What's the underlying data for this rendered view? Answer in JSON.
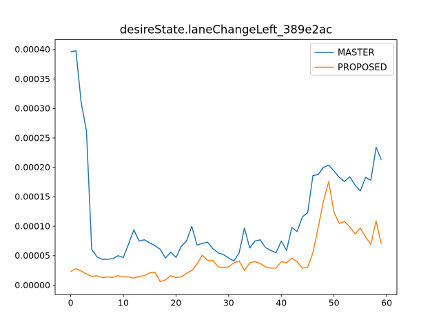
{
  "chart_data": {
    "type": "line",
    "title": "desireState.laneChangeLeft_389e2ac",
    "grid": false,
    "legend_position": "upper right",
    "xlim": [
      -2.95,
      61.95
    ],
    "ylim": [
      -1.6e-05,
      0.0004168
    ],
    "x_ticks": [
      0,
      10,
      20,
      30,
      40,
      50,
      60
    ],
    "x_tick_labels": [
      "0",
      "10",
      "20",
      "30",
      "40",
      "50",
      "60"
    ],
    "y_ticks": [
      0.0,
      5e-05,
      0.0001,
      0.00015,
      0.0002,
      0.00025,
      0.0003,
      0.00035,
      0.0004
    ],
    "y_tick_labels": [
      "0.00000",
      "0.00005",
      "0.00010",
      "0.00015",
      "0.00020",
      "0.00025",
      "0.00030",
      "0.00035",
      "0.00040"
    ],
    "x": [
      0,
      1,
      2,
      3,
      4,
      5,
      6,
      7,
      8,
      9,
      10,
      11,
      12,
      13,
      14,
      15,
      16,
      17,
      18,
      19,
      20,
      21,
      22,
      23,
      24,
      25,
      26,
      27,
      28,
      29,
      30,
      31,
      32,
      33,
      34,
      35,
      36,
      37,
      38,
      39,
      40,
      41,
      42,
      43,
      44,
      45,
      46,
      47,
      48,
      49,
      50,
      51,
      52,
      53,
      54,
      55,
      56,
      57,
      58,
      59
    ],
    "series": [
      {
        "name": "MASTER",
        "color": "#1f77b4",
        "values": [
          0.000396,
          0.000398,
          0.00031,
          0.000262,
          6.1e-05,
          4.8e-05,
          4.4e-05,
          4.4e-05,
          4.5e-05,
          5e-05,
          4.7e-05,
          7e-05,
          9.4e-05,
          7.5e-05,
          7.7e-05,
          7.2e-05,
          6.7e-05,
          6.1e-05,
          4.6e-05,
          5.6e-05,
          4.7e-05,
          6.6e-05,
          7.5e-05,
          0.0001,
          6.8e-05,
          7.1e-05,
          7.3e-05,
          6.2e-05,
          5.5e-05,
          5.2e-05,
          4.6e-05,
          4.1e-05,
          5.5e-05,
          9.7e-05,
          6.3e-05,
          7.5e-05,
          7.7e-05,
          6.4e-05,
          5.9e-05,
          5.5e-05,
          7.5e-05,
          5.9e-05,
          9.8e-05,
          9.1e-05,
          0.000116,
          0.000123,
          0.000186,
          0.000188,
          0.0002,
          0.000204,
          0.000194,
          0.000183,
          0.000176,
          0.000184,
          0.00017,
          0.00016,
          0.000183,
          0.000178,
          0.000234,
          0.000213
        ]
      },
      {
        "name": "PROPOSED",
        "color": "#ff7f0e",
        "values": [
          2.3e-05,
          2.8e-05,
          2.4e-05,
          1.9e-05,
          1.5e-05,
          1.6e-05,
          1.3e-05,
          1.4e-05,
          1.3e-05,
          1.6e-05,
          1.4e-05,
          1.4e-05,
          1.2e-05,
          1.5e-05,
          1.6e-05,
          2.1e-05,
          2.2e-05,
          6e-06,
          9e-06,
          1.6e-05,
          1.3e-05,
          1.4e-05,
          2e-05,
          2.5e-05,
          3.6e-05,
          5.1e-05,
          4.2e-05,
          4.2e-05,
          3.1e-05,
          3e-05,
          3.1e-05,
          3.8e-05,
          4.1e-05,
          2.5e-05,
          3.8e-05,
          4e-05,
          3.7e-05,
          3.1e-05,
          2.9e-05,
          2.9e-05,
          4e-05,
          3.8e-05,
          4.6e-05,
          4e-05,
          2.9e-05,
          3e-05,
          5.5e-05,
          9.8e-05,
          0.000142,
          0.000176,
          0.000124,
          0.000105,
          0.000108,
          9.9e-05,
          8.7e-05,
          9.7e-05,
          8.2e-05,
          6.9e-05,
          0.000109,
          7e-05
        ]
      }
    ],
    "axis_color": "#000000",
    "background_color": "#ffffff",
    "legend_border_color": "#cccccc"
  }
}
